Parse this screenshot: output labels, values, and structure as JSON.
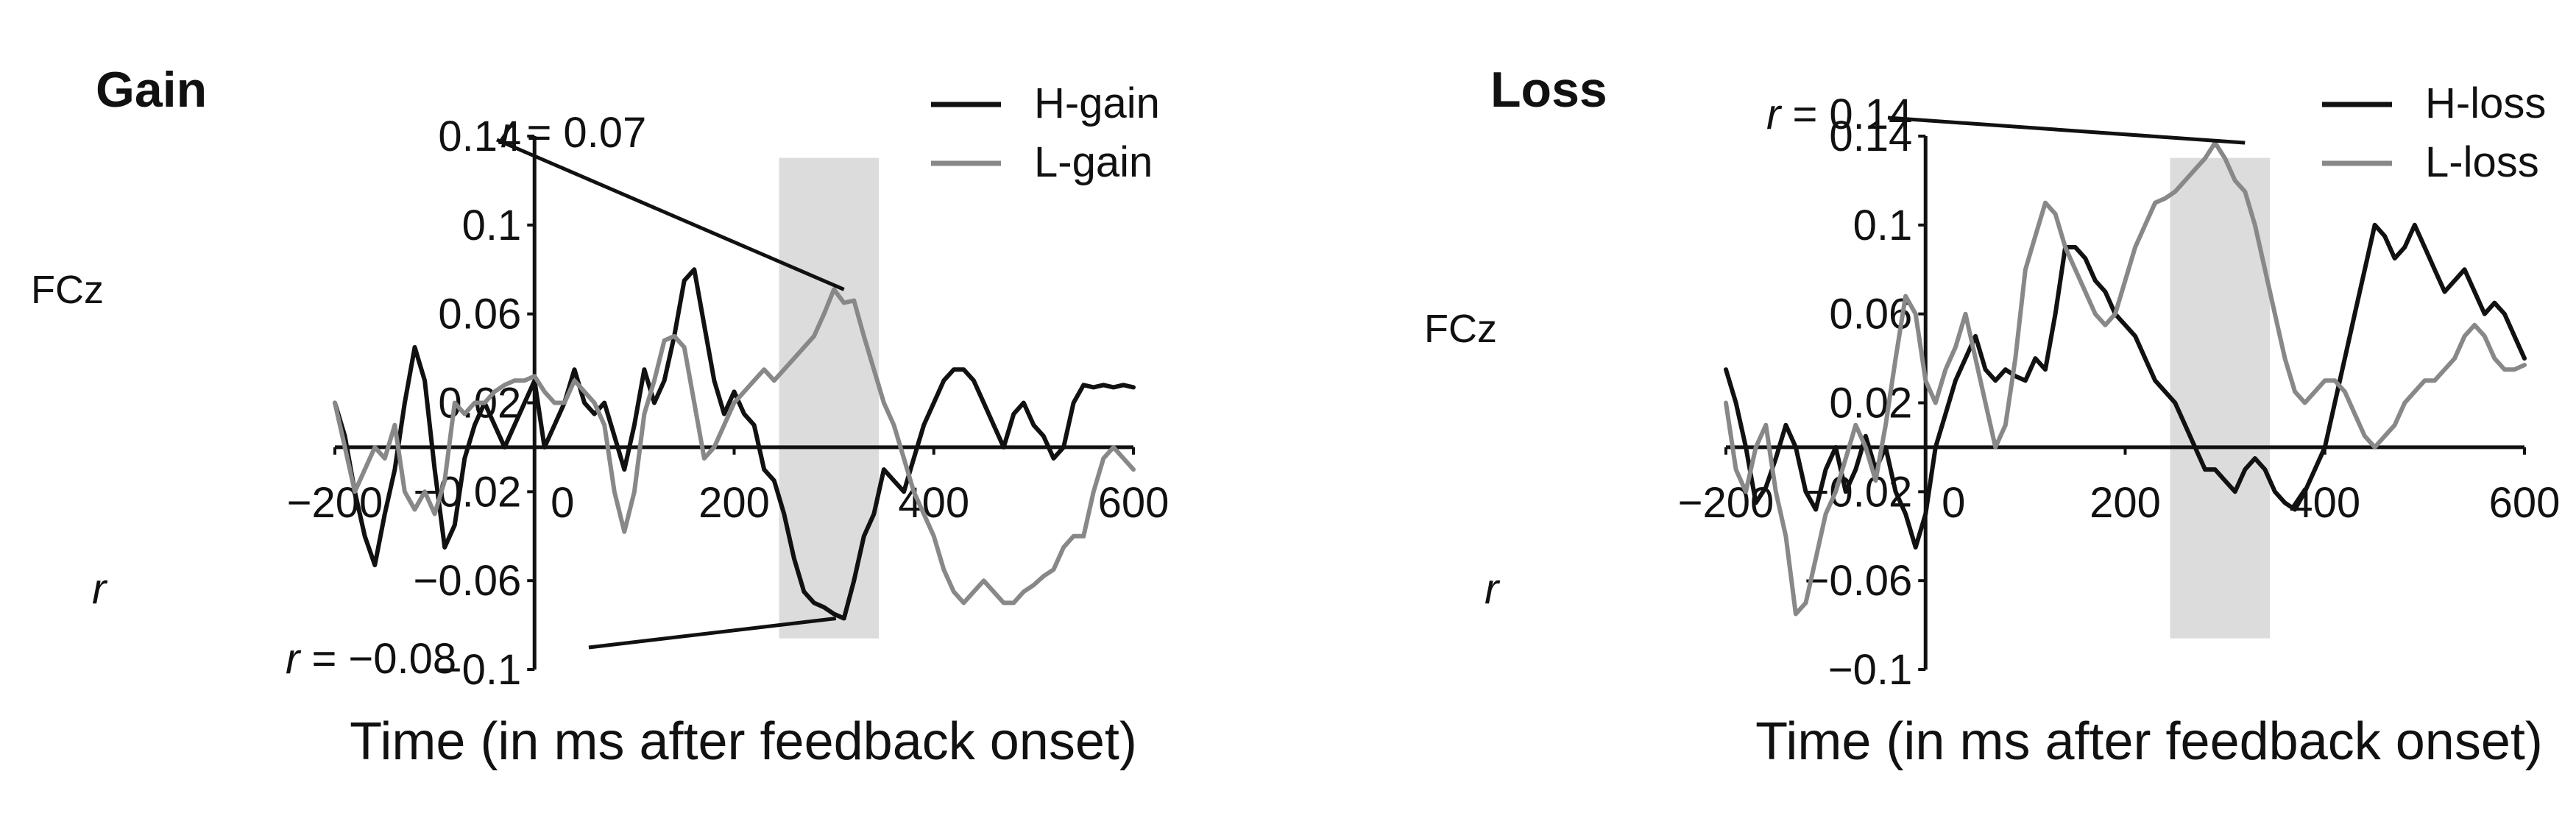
{
  "chart_data": [
    {
      "type": "line",
      "title": "Gain",
      "channel_label": "FCz",
      "ylabel": "r",
      "xlabel": "Time (in ms after feedback onset)",
      "xlim": [
        -200,
        600
      ],
      "ylim": [
        -0.1,
        0.14
      ],
      "xticks": [
        "−200",
        "0",
        "200",
        "400",
        "600"
      ],
      "yticks": [
        "0.14",
        "0.1",
        "0.06",
        "0.02",
        "−0.02",
        "−0.06",
        "−0.1"
      ],
      "shaded_window": [
        245,
        345
      ],
      "annotations": [
        {
          "italic": "r",
          "text": " = 0.07",
          "x": 310,
          "y": 0.071
        },
        {
          "italic": "r",
          "text": " = −0.08",
          "x": 302,
          "y": -0.077
        }
      ],
      "series": [
        {
          "name": "H-gain",
          "color": "#111111",
          "x": [
            -200,
            -190,
            -180,
            -170,
            -160,
            -150,
            -140,
            -130,
            -120,
            -110,
            -100,
            -90,
            -80,
            -70,
            -60,
            -50,
            -40,
            -30,
            -20,
            -10,
            0,
            10,
            20,
            30,
            40,
            50,
            60,
            70,
            80,
            90,
            100,
            110,
            120,
            130,
            140,
            150,
            160,
            170,
            180,
            190,
            200,
            210,
            220,
            230,
            240,
            250,
            260,
            270,
            280,
            290,
            300,
            310,
            320,
            330,
            340,
            350,
            360,
            370,
            380,
            390,
            400,
            410,
            420,
            430,
            440,
            450,
            460,
            470,
            480,
            490,
            500,
            510,
            520,
            530,
            540,
            550,
            560,
            570,
            580,
            590,
            600
          ],
          "y": [
            0.02,
            0.005,
            -0.02,
            -0.04,
            -0.053,
            -0.03,
            -0.01,
            0.02,
            0.045,
            0.03,
            -0.01,
            -0.045,
            -0.035,
            -0.005,
            0.01,
            0.02,
            0.01,
            0.0,
            0.01,
            0.02,
            0.03,
            0.0,
            0.01,
            0.02,
            0.035,
            0.02,
            0.015,
            0.02,
            0.005,
            -0.01,
            0.01,
            0.035,
            0.02,
            0.03,
            0.05,
            0.075,
            0.08,
            0.055,
            0.03,
            0.015,
            0.025,
            0.015,
            0.01,
            -0.01,
            -0.015,
            -0.03,
            -0.05,
            -0.065,
            -0.07,
            -0.072,
            -0.075,
            -0.077,
            -0.06,
            -0.04,
            -0.03,
            -0.01,
            -0.015,
            -0.02,
            -0.005,
            0.01,
            0.02,
            0.03,
            0.035,
            0.035,
            0.03,
            0.02,
            0.01,
            0.0,
            0.015,
            0.02,
            0.01,
            0.005,
            -0.005,
            0.0,
            0.02,
            0.028,
            0.027,
            0.028,
            0.027,
            0.028,
            0.027
          ]
        },
        {
          "name": "L-gain",
          "color": "#888888",
          "x": [
            -200,
            -190,
            -180,
            -170,
            -160,
            -150,
            -140,
            -130,
            -120,
            -110,
            -100,
            -90,
            -80,
            -70,
            -60,
            -50,
            -40,
            -30,
            -20,
            -10,
            0,
            10,
            20,
            30,
            40,
            50,
            60,
            70,
            80,
            90,
            100,
            110,
            120,
            130,
            140,
            150,
            160,
            170,
            180,
            190,
            200,
            210,
            220,
            230,
            240,
            250,
            260,
            270,
            280,
            290,
            300,
            310,
            320,
            330,
            340,
            350,
            360,
            370,
            380,
            390,
            400,
            410,
            420,
            430,
            440,
            450,
            460,
            470,
            480,
            490,
            500,
            510,
            520,
            530,
            540,
            550,
            560,
            570,
            580,
            590,
            600
          ],
          "y": [
            0.02,
            0.0,
            -0.02,
            -0.01,
            0.0,
            -0.005,
            0.01,
            -0.02,
            -0.028,
            -0.02,
            -0.03,
            -0.015,
            0.02,
            0.015,
            0.02,
            0.02,
            0.025,
            0.028,
            0.03,
            0.03,
            0.032,
            0.025,
            0.02,
            0.02,
            0.03,
            0.025,
            0.02,
            0.01,
            -0.02,
            -0.038,
            -0.02,
            0.015,
            0.03,
            0.048,
            0.05,
            0.045,
            0.02,
            -0.005,
            0.0,
            0.01,
            0.02,
            0.025,
            0.03,
            0.035,
            0.03,
            0.035,
            0.04,
            0.045,
            0.05,
            0.06,
            0.071,
            0.065,
            0.066,
            0.05,
            0.035,
            0.02,
            0.01,
            -0.005,
            -0.02,
            -0.03,
            -0.04,
            -0.055,
            -0.065,
            -0.07,
            -0.065,
            -0.06,
            -0.065,
            -0.07,
            -0.07,
            -0.065,
            -0.062,
            -0.058,
            -0.055,
            -0.045,
            -0.04,
            -0.04,
            -0.02,
            -0.005,
            0.0,
            -0.005,
            -0.01
          ]
        }
      ]
    },
    {
      "type": "line",
      "title": "Loss",
      "channel_label": "FCz",
      "ylabel": "r",
      "xlabel": "Time (in ms after feedback onset)",
      "xlim": [
        -200,
        600
      ],
      "ylim": [
        -0.1,
        0.14
      ],
      "xticks": [
        "−200",
        "0",
        "200",
        "400",
        "600"
      ],
      "yticks": [
        "0.14",
        "0.1",
        "0.06",
        "0.02",
        "−0.02",
        "−0.06",
        "−0.1"
      ],
      "shaded_window": [
        245,
        345
      ],
      "annotations": [
        {
          "italic": "r",
          "text": " = 0.14",
          "x": 320,
          "y": 0.137
        }
      ],
      "series": [
        {
          "name": "H-loss",
          "color": "#111111",
          "x": [
            -200,
            -190,
            -180,
            -170,
            -160,
            -150,
            -140,
            -130,
            -120,
            -110,
            -100,
            -90,
            -80,
            -70,
            -60,
            -50,
            -40,
            -30,
            -20,
            -10,
            0,
            10,
            20,
            30,
            40,
            50,
            60,
            70,
            80,
            90,
            100,
            110,
            120,
            130,
            140,
            150,
            160,
            170,
            180,
            190,
            200,
            210,
            220,
            230,
            240,
            250,
            260,
            270,
            280,
            290,
            300,
            310,
            320,
            330,
            340,
            350,
            360,
            370,
            380,
            390,
            400,
            410,
            420,
            430,
            440,
            450,
            460,
            470,
            480,
            490,
            500,
            510,
            520,
            530,
            540,
            550,
            560,
            570,
            580,
            590,
            600
          ],
          "y": [
            0.035,
            0.02,
            0.0,
            -0.025,
            -0.018,
            -0.005,
            0.01,
            0.0,
            -0.02,
            -0.028,
            -0.01,
            0.0,
            -0.02,
            -0.01,
            0.005,
            -0.01,
            0.0,
            -0.02,
            -0.03,
            -0.045,
            -0.03,
            0.0,
            0.015,
            0.03,
            0.04,
            0.05,
            0.035,
            0.03,
            0.035,
            0.032,
            0.03,
            0.04,
            0.035,
            0.06,
            0.09,
            0.09,
            0.085,
            0.075,
            0.07,
            0.06,
            0.055,
            0.05,
            0.04,
            0.03,
            0.025,
            0.02,
            0.01,
            0.0,
            -0.01,
            -0.01,
            -0.015,
            -0.02,
            -0.01,
            -0.005,
            -0.01,
            -0.02,
            -0.025,
            -0.028,
            -0.02,
            -0.01,
            0.0,
            0.02,
            0.04,
            0.06,
            0.08,
            0.1,
            0.095,
            0.085,
            0.09,
            0.1,
            0.09,
            0.08,
            0.07,
            0.075,
            0.08,
            0.07,
            0.06,
            0.065,
            0.06,
            0.05,
            0.04
          ]
        },
        {
          "name": "L-loss",
          "color": "#888888",
          "x": [
            -200,
            -190,
            -180,
            -170,
            -160,
            -150,
            -140,
            -130,
            -120,
            -110,
            -100,
            -90,
            -80,
            -70,
            -60,
            -50,
            -40,
            -30,
            -20,
            -10,
            0,
            10,
            20,
            30,
            40,
            50,
            60,
            70,
            80,
            90,
            100,
            110,
            120,
            130,
            140,
            150,
            160,
            170,
            180,
            190,
            200,
            210,
            220,
            230,
            240,
            250,
            260,
            270,
            280,
            290,
            300,
            310,
            320,
            330,
            340,
            350,
            360,
            370,
            380,
            390,
            400,
            410,
            420,
            430,
            440,
            450,
            460,
            470,
            480,
            490,
            500,
            510,
            520,
            530,
            540,
            550,
            560,
            570,
            580,
            590,
            600
          ],
          "y": [
            0.02,
            -0.01,
            -0.02,
            0.0,
            0.01,
            -0.02,
            -0.04,
            -0.075,
            -0.07,
            -0.05,
            -0.03,
            -0.02,
            -0.005,
            0.01,
            0.0,
            -0.015,
            0.01,
            0.04,
            0.068,
            0.06,
            0.03,
            0.02,
            0.035,
            0.045,
            0.06,
            0.04,
            0.02,
            0.0,
            0.01,
            0.04,
            0.08,
            0.095,
            0.11,
            0.105,
            0.09,
            0.08,
            0.07,
            0.06,
            0.055,
            0.06,
            0.075,
            0.09,
            0.1,
            0.11,
            0.112,
            0.115,
            0.12,
            0.125,
            0.13,
            0.137,
            0.13,
            0.12,
            0.115,
            0.1,
            0.08,
            0.06,
            0.04,
            0.025,
            0.02,
            0.025,
            0.03,
            0.03,
            0.025,
            0.015,
            0.005,
            0.0,
            0.005,
            0.01,
            0.02,
            0.025,
            0.03,
            0.03,
            0.035,
            0.04,
            0.05,
            0.055,
            0.05,
            0.04,
            0.035,
            0.035,
            0.037
          ]
        }
      ]
    }
  ]
}
